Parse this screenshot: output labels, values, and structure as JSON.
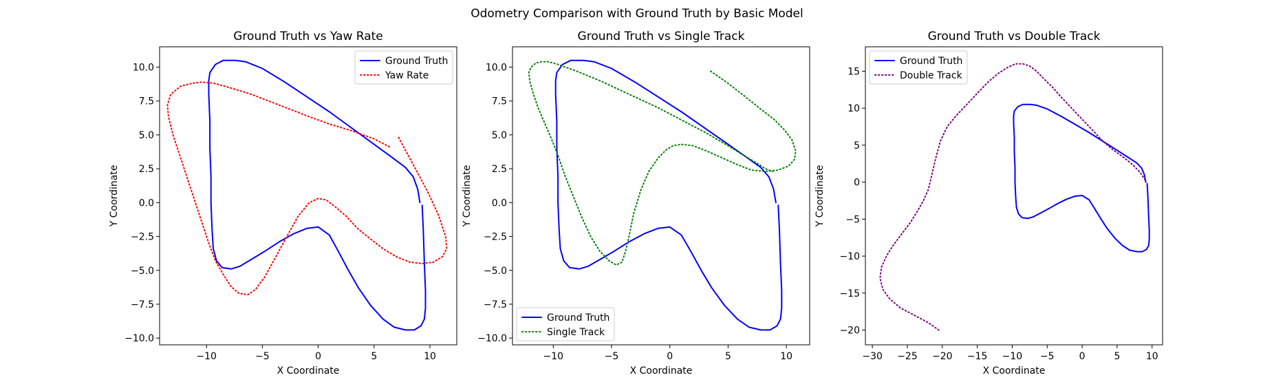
{
  "figure": {
    "suptitle": "Odometry Comparison with Ground Truth by Basic Model"
  },
  "chart_data": [
    {
      "type": "line",
      "title": "Ground Truth vs Yaw Rate",
      "xlabel": "X Coordinate",
      "ylabel": "Y Coordinate",
      "xlim": [
        -14.2,
        12.4
      ],
      "ylim": [
        -10.5,
        11.5
      ],
      "xticks": [
        -10,
        -5,
        0,
        5,
        10
      ],
      "xtick_labels": [
        "−10",
        "−5",
        "0",
        "5",
        "10"
      ],
      "yticks": [
        -10,
        -7.5,
        -5,
        -2.5,
        0,
        2.5,
        5,
        7.5,
        10
      ],
      "ytick_labels": [
        "−10.0",
        "−7.5",
        "−5.0",
        "−2.5",
        "0.0",
        "2.5",
        "5.0",
        "7.5",
        "10.0"
      ],
      "grid": false,
      "legend_position": "upper-right",
      "series": [
        {
          "name": "Ground Truth",
          "color": "#0000ff",
          "style": "solid",
          "x": [
            9.3,
            9.4,
            9.5,
            9.6,
            9.6,
            9.5,
            9.2,
            8.6,
            7.8,
            6.8,
            5.8,
            4.7,
            3.6,
            2.7,
            1.8,
            1.0,
            0.0,
            -1.0,
            -2.2,
            -3.5,
            -4.8,
            -6.0,
            -7.0,
            -7.8,
            -8.6,
            -9.1,
            -9.4,
            -9.5,
            -9.6,
            -9.6,
            -9.7,
            -9.7,
            -9.8,
            -9.8,
            -9.7,
            -9.2,
            -8.5,
            -7.4,
            -6.5,
            -5.0,
            -3.0,
            -1.0,
            1.0,
            3.0,
            5.0,
            6.5,
            7.8,
            8.5,
            8.9,
            9.1
          ],
          "y": [
            -0.2,
            -2.0,
            -4.5,
            -6.5,
            -7.8,
            -8.6,
            -9.1,
            -9.4,
            -9.4,
            -9.2,
            -8.6,
            -7.6,
            -6.3,
            -5.0,
            -3.6,
            -2.4,
            -1.8,
            -1.9,
            -2.3,
            -2.9,
            -3.6,
            -4.2,
            -4.7,
            -4.9,
            -4.8,
            -4.3,
            -3.4,
            -2.0,
            0.0,
            2.0,
            4.0,
            6.0,
            8.0,
            9.0,
            9.6,
            10.2,
            10.5,
            10.5,
            10.4,
            9.9,
            8.9,
            7.8,
            6.7,
            5.5,
            4.3,
            3.4,
            2.6,
            1.9,
            1.0,
            0.0
          ]
        },
        {
          "name": "Yaw Rate",
          "color": "#ff0000",
          "style": "dotted",
          "x": [
            7.2,
            8.5,
            9.8,
            10.8,
            11.4,
            11.5,
            11.1,
            10.3,
            9.3,
            8.2,
            7.0,
            5.8,
            4.7,
            3.5,
            2.5,
            1.5,
            0.7,
            0.0,
            -0.8,
            -1.8,
            -2.8,
            -3.8,
            -4.8,
            -5.6,
            -6.3,
            -7.1,
            -7.8,
            -8.5,
            -9.2,
            -9.8,
            -10.4,
            -11.2,
            -12.2,
            -13.0,
            -13.4,
            -13.5,
            -13.2,
            -12.3,
            -11.3,
            -10.4,
            -9.3,
            -8.0,
            -6.0,
            -3.5,
            -1.0,
            1.0,
            3.0,
            5.0,
            6.4
          ],
          "y": [
            4.8,
            2.8,
            0.8,
            -1.0,
            -2.5,
            -3.4,
            -4.0,
            -4.4,
            -4.5,
            -4.4,
            -4.0,
            -3.4,
            -2.7,
            -1.9,
            -1.0,
            -0.3,
            0.2,
            0.3,
            0.0,
            -1.0,
            -2.5,
            -4.0,
            -5.5,
            -6.4,
            -6.8,
            -6.7,
            -6.2,
            -5.3,
            -4.3,
            -3.0,
            -1.5,
            0.5,
            3.0,
            5.0,
            6.3,
            7.2,
            8.0,
            8.6,
            8.8,
            8.9,
            8.8,
            8.5,
            8.0,
            7.2,
            6.4,
            5.8,
            5.3,
            4.7,
            4.1
          ]
        }
      ]
    },
    {
      "type": "line",
      "title": "Ground Truth vs Single Track",
      "xlabel": "X Coordinate",
      "ylabel": "Y Coordinate",
      "xlim": [
        -13.5,
        12.0
      ],
      "ylim": [
        -10.5,
        11.5
      ],
      "xticks": [
        -10,
        -5,
        0,
        5,
        10
      ],
      "xtick_labels": [
        "−10",
        "−5",
        "0",
        "5",
        "10"
      ],
      "yticks": [
        -10,
        -7.5,
        -5,
        -2.5,
        0,
        2.5,
        5,
        7.5,
        10
      ],
      "ytick_labels": [
        "−10.0",
        "−7.5",
        "−5.0",
        "−2.5",
        "0.0",
        "2.5",
        "5.0",
        "7.5",
        "10.0"
      ],
      "grid": false,
      "legend_position": "lower-left",
      "series": [
        {
          "name": "Ground Truth",
          "color": "#0000ff",
          "style": "solid",
          "x": [
            9.3,
            9.4,
            9.5,
            9.6,
            9.6,
            9.5,
            9.2,
            8.6,
            7.8,
            6.8,
            5.8,
            4.7,
            3.6,
            2.7,
            1.8,
            1.0,
            0.0,
            -1.0,
            -2.2,
            -3.5,
            -4.8,
            -6.0,
            -7.0,
            -7.8,
            -8.6,
            -9.1,
            -9.4,
            -9.5,
            -9.6,
            -9.6,
            -9.7,
            -9.7,
            -9.8,
            -9.8,
            -9.7,
            -9.2,
            -8.5,
            -7.4,
            -6.5,
            -5.0,
            -3.0,
            -1.0,
            1.0,
            3.0,
            5.0,
            6.5,
            7.8,
            8.5,
            8.9,
            9.1
          ],
          "y": [
            -0.2,
            -2.0,
            -4.5,
            -6.5,
            -7.8,
            -8.6,
            -9.1,
            -9.4,
            -9.4,
            -9.2,
            -8.6,
            -7.6,
            -6.3,
            -5.0,
            -3.6,
            -2.4,
            -1.8,
            -1.9,
            -2.3,
            -2.9,
            -3.6,
            -4.2,
            -4.7,
            -4.9,
            -4.8,
            -4.3,
            -3.4,
            -2.0,
            0.0,
            2.0,
            4.0,
            6.0,
            8.0,
            9.0,
            9.6,
            10.2,
            10.5,
            10.5,
            10.4,
            9.9,
            8.9,
            7.8,
            6.7,
            5.5,
            4.3,
            3.4,
            2.6,
            1.9,
            1.0,
            0.0
          ]
        },
        {
          "name": "Single Track",
          "color": "#008000",
          "style": "dotted",
          "x": [
            3.5,
            5.0,
            6.5,
            7.8,
            9.0,
            9.9,
            10.5,
            10.8,
            10.7,
            10.2,
            9.3,
            8.2,
            7.0,
            5.8,
            4.5,
            3.2,
            2.0,
            1.0,
            0.3,
            -0.3,
            -1.0,
            -1.8,
            -2.5,
            -3.1,
            -3.5,
            -3.8,
            -4.1,
            -4.6,
            -5.2,
            -6.0,
            -6.8,
            -7.6,
            -8.3,
            -9.0,
            -9.6,
            -10.2,
            -10.8,
            -11.3,
            -11.7,
            -12.0,
            -12.1,
            -11.9,
            -11.5,
            -11.0,
            -10.4,
            -9.6,
            -8.0,
            -6.0,
            -3.5,
            -1.0,
            1.0,
            3.0,
            5.0,
            6.5,
            7.5,
            8.2,
            8.8
          ],
          "y": [
            9.7,
            8.8,
            7.8,
            6.9,
            6.1,
            5.3,
            4.6,
            3.8,
            3.2,
            2.7,
            2.4,
            2.3,
            2.4,
            2.8,
            3.3,
            3.8,
            4.2,
            4.3,
            4.2,
            3.9,
            3.3,
            2.3,
            0.9,
            -0.8,
            -2.5,
            -3.6,
            -4.4,
            -4.6,
            -4.3,
            -3.6,
            -2.5,
            -1.0,
            0.5,
            2.0,
            3.5,
            4.8,
            6.0,
            7.0,
            8.0,
            8.9,
            9.6,
            10.0,
            10.3,
            10.4,
            10.4,
            10.2,
            9.7,
            9.0,
            8.0,
            7.0,
            6.1,
            5.2,
            4.2,
            3.4,
            2.9,
            2.5,
            2.3
          ]
        }
      ]
    },
    {
      "type": "line",
      "title": "Ground Truth vs Double Track",
      "xlabel": "X Coordinate",
      "ylabel": "Y Coordinate",
      "xlim": [
        -31.0,
        11.5
      ],
      "ylim": [
        -22.0,
        18.3
      ],
      "xticks": [
        -30,
        -25,
        -20,
        -15,
        -10,
        -5,
        0,
        5,
        10
      ],
      "xtick_labels": [
        "−30",
        "−25",
        "−20",
        "−15",
        "−10",
        "−5",
        "0",
        "5",
        "10"
      ],
      "yticks": [
        -20,
        -15,
        -10,
        -5,
        0,
        5,
        10,
        15
      ],
      "ytick_labels": [
        "−20",
        "−15",
        "−10",
        "−5",
        "0",
        "5",
        "10",
        "15"
      ],
      "grid": false,
      "legend_position": "upper-left",
      "series": [
        {
          "name": "Ground Truth",
          "color": "#0000ff",
          "style": "solid",
          "x": [
            9.3,
            9.4,
            9.5,
            9.6,
            9.6,
            9.5,
            9.2,
            8.6,
            7.8,
            6.8,
            5.8,
            4.7,
            3.6,
            2.7,
            1.8,
            1.0,
            0.0,
            -1.0,
            -2.2,
            -3.5,
            -4.8,
            -6.0,
            -7.0,
            -7.8,
            -8.6,
            -9.1,
            -9.4,
            -9.5,
            -9.6,
            -9.6,
            -9.7,
            -9.7,
            -9.8,
            -9.8,
            -9.7,
            -9.2,
            -8.5,
            -7.4,
            -6.5,
            -5.0,
            -3.0,
            -1.0,
            1.0,
            3.0,
            5.0,
            6.5,
            7.8,
            8.5,
            8.9,
            9.1
          ],
          "y": [
            -0.2,
            -2.0,
            -4.5,
            -6.5,
            -7.8,
            -8.6,
            -9.1,
            -9.4,
            -9.4,
            -9.2,
            -8.6,
            -7.6,
            -6.3,
            -5.0,
            -3.6,
            -2.4,
            -1.8,
            -1.9,
            -2.3,
            -2.9,
            -3.6,
            -4.2,
            -4.7,
            -4.9,
            -4.8,
            -4.3,
            -3.4,
            -2.0,
            0.0,
            2.0,
            4.0,
            6.0,
            8.0,
            9.0,
            9.6,
            10.2,
            10.5,
            10.5,
            10.4,
            9.9,
            8.9,
            7.8,
            6.7,
            5.5,
            4.3,
            3.4,
            2.6,
            1.9,
            1.0,
            0.0
          ]
        },
        {
          "name": "Double Track",
          "color": "#800080",
          "style": "dotted",
          "x": [
            -20.5,
            -22.0,
            -24.0,
            -26.0,
            -27.5,
            -28.5,
            -28.9,
            -28.7,
            -28.0,
            -27.0,
            -25.8,
            -24.6,
            -23.6,
            -22.7,
            -22.0,
            -21.5,
            -21.0,
            -20.3,
            -19.3,
            -18.0,
            -16.5,
            -15.0,
            -13.5,
            -12.0,
            -10.7,
            -9.5,
            -8.5,
            -7.5,
            -6.5,
            -5.5,
            -4.2,
            -3.0,
            -1.5,
            0.0,
            1.5,
            3.0,
            4.5,
            6.0,
            7.3,
            8.3,
            9.0
          ],
          "y": [
            -20.0,
            -19.0,
            -18.0,
            -17.0,
            -15.8,
            -14.5,
            -13.0,
            -11.5,
            -10.0,
            -8.5,
            -7.0,
            -5.5,
            -4.0,
            -2.5,
            -1.0,
            1.0,
            3.0,
            5.5,
            7.5,
            9.0,
            10.5,
            12.0,
            13.5,
            14.7,
            15.5,
            16.0,
            16.0,
            15.7,
            15.0,
            14.0,
            12.8,
            11.5,
            10.0,
            8.5,
            7.0,
            5.5,
            4.3,
            3.3,
            2.3,
            1.3,
            0.3
          ]
        }
      ]
    }
  ]
}
